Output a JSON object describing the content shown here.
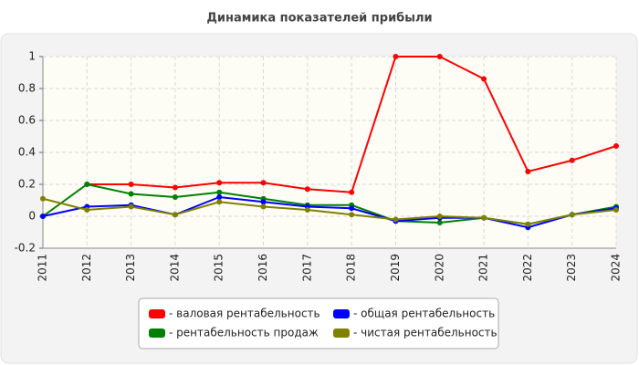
{
  "chart_data": {
    "type": "line",
    "title": "Динамика показателей прибыли",
    "categories": [
      "2011",
      "2012",
      "2013",
      "2014",
      "2015",
      "2016",
      "2017",
      "2018",
      "2019",
      "2020",
      "2021",
      "2022",
      "2023",
      "2024"
    ],
    "series": [
      {
        "name": "- валовая рентабельность",
        "color": "#ff0000",
        "values": [
          null,
          0.2,
          0.2,
          0.18,
          0.21,
          0.21,
          0.17,
          0.15,
          1.0,
          1.0,
          0.86,
          0.28,
          0.35,
          0.44
        ]
      },
      {
        "name": "- рентабельность продаж",
        "color": "#008000",
        "values": [
          0,
          0.2,
          0.14,
          0.12,
          0.15,
          0.11,
          0.07,
          0.07,
          -0.03,
          -0.04,
          -0.01,
          -0.05,
          0.01,
          0.06
        ]
      },
      {
        "name": "- общая рентабельность",
        "color": "#0000ff",
        "values": [
          0,
          0.06,
          0.07,
          0.01,
          0.12,
          0.09,
          0.06,
          0.05,
          -0.03,
          -0.01,
          -0.01,
          -0.07,
          0.01,
          0.05
        ]
      },
      {
        "name": "- чистая рентабельность",
        "color": "#808000",
        "values": [
          0.11,
          0.04,
          0.06,
          0.01,
          0.09,
          0.06,
          0.04,
          0.01,
          -0.02,
          0,
          -0.01,
          -0.05,
          0.01,
          0.04
        ]
      }
    ],
    "ylim": [
      -0.2,
      1
    ],
    "yticks": [
      -0.2,
      0,
      0.2,
      0.4,
      0.6,
      0.8,
      1
    ],
    "grid": true
  }
}
